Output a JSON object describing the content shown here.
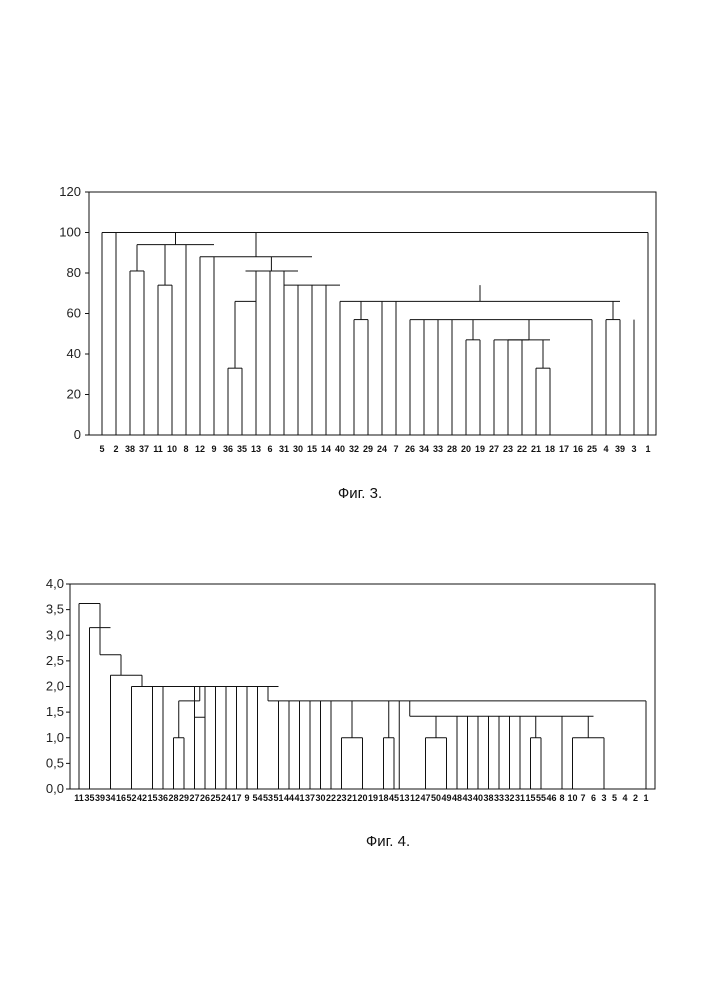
{
  "figures": [
    {
      "caption": "Фиг. 3."
    },
    {
      "caption": "Фиг. 4."
    }
  ],
  "chart_data": [
    {
      "type": "dendrogram",
      "ylim": [
        0,
        120
      ],
      "yticks": [
        "0",
        "20",
        "40",
        "60",
        "80",
        "100",
        "120"
      ],
      "ytick_values": [
        0,
        20,
        40,
        60,
        80,
        100,
        120
      ],
      "leaves": [
        "5",
        "2",
        "38",
        "37",
        "11",
        "10",
        "8",
        "12",
        "9",
        "36",
        "35",
        "13",
        "6",
        "31",
        "30",
        "15",
        "14",
        "40",
        "32",
        "29",
        "24",
        "7",
        "26",
        "34",
        "33",
        "28",
        "20",
        "19",
        "27",
        "23",
        "22",
        "21",
        "18",
        "17",
        "16",
        "25",
        "4",
        "39",
        "3",
        "1"
      ],
      "merges": [
        {
          "l": "36",
          "r": "35",
          "h": 33
        },
        {
          "l": "21",
          "r": "18",
          "h": 33
        },
        {
          "l": "20",
          "r": "19",
          "h": 47
        },
        {
          "l": "23",
          "r": "22",
          "h": 47
        },
        {
          "l": "23-22",
          "r": "21-18",
          "h": 47
        },
        {
          "l": "27",
          "r": "23-22-21-18",
          "h": 47
        },
        {
          "l": "20-19",
          "r": "27-23-22-21-18",
          "h": 57
        },
        {
          "l": "28",
          "r": "20-19-27-23-22-21-18",
          "h": 57
        },
        {
          "l": "33",
          "r": "28-20-19-27-23-22-21-18",
          "h": 57
        },
        {
          "l": "34",
          "r": "33-...-18",
          "h": 57
        },
        {
          "l": "26",
          "r": "34-...-18",
          "h": 57
        },
        {
          "l": "26-...-18",
          "r": "17-16-25",
          "h": 57
        },
        {
          "l": "25",
          "r": "4",
          "h": 57
        },
        {
          "l": "39",
          "r": "3",
          "h": 57
        },
        {
          "l": "32",
          "r": "29",
          "h": 57
        },
        {
          "l": "38",
          "r": "37",
          "h": 81
        },
        {
          "l": "11",
          "r": "10",
          "h": 74
        },
        {
          "l": "12",
          "r": "9",
          "h": 88
        },
        {
          "l": "36-35",
          "r": "13",
          "h": 66
        },
        {
          "l": "6",
          "r": "31",
          "h": 81
        },
        {
          "l": "30",
          "r": "15",
          "h": 74
        },
        {
          "l": "40",
          "r": "32-29",
          "h": 66
        },
        {
          "l": "2",
          "r": "1",
          "h": 100
        },
        {
          "l": "5",
          "r": "all",
          "h": 100
        }
      ]
    },
    {
      "type": "dendrogram",
      "ylim": [
        0,
        4
      ],
      "yticks": [
        "0,0",
        "0,5",
        "1,0",
        "1,5",
        "2,0",
        "2,5",
        "3,0",
        "3,5",
        "4,0"
      ],
      "ytick_values": [
        0,
        0.5,
        1.0,
        1.5,
        2.0,
        2.5,
        3.0,
        3.5,
        4.0
      ],
      "leaves": [
        "11",
        "35",
        "39",
        "34",
        "16",
        "52",
        "42",
        "15",
        "36",
        "28",
        "29",
        "27",
        "26",
        "25",
        "24",
        "17",
        "9",
        "54",
        "53",
        "51",
        "44",
        "41",
        "37",
        "30",
        "22",
        "23",
        "21",
        "20",
        "19",
        "18",
        "45",
        "13",
        "12",
        "47",
        "50",
        "49",
        "48",
        "43",
        "40",
        "38",
        "33",
        "32",
        "31",
        "15",
        "55",
        "46",
        "8",
        "10",
        "7",
        "6",
        "3",
        "5",
        "4",
        "2",
        "1"
      ],
      "merge_heights": [
        3.62,
        3.15,
        2.62,
        2.22,
        2.0,
        1.72,
        1.42,
        1.0
      ]
    }
  ]
}
